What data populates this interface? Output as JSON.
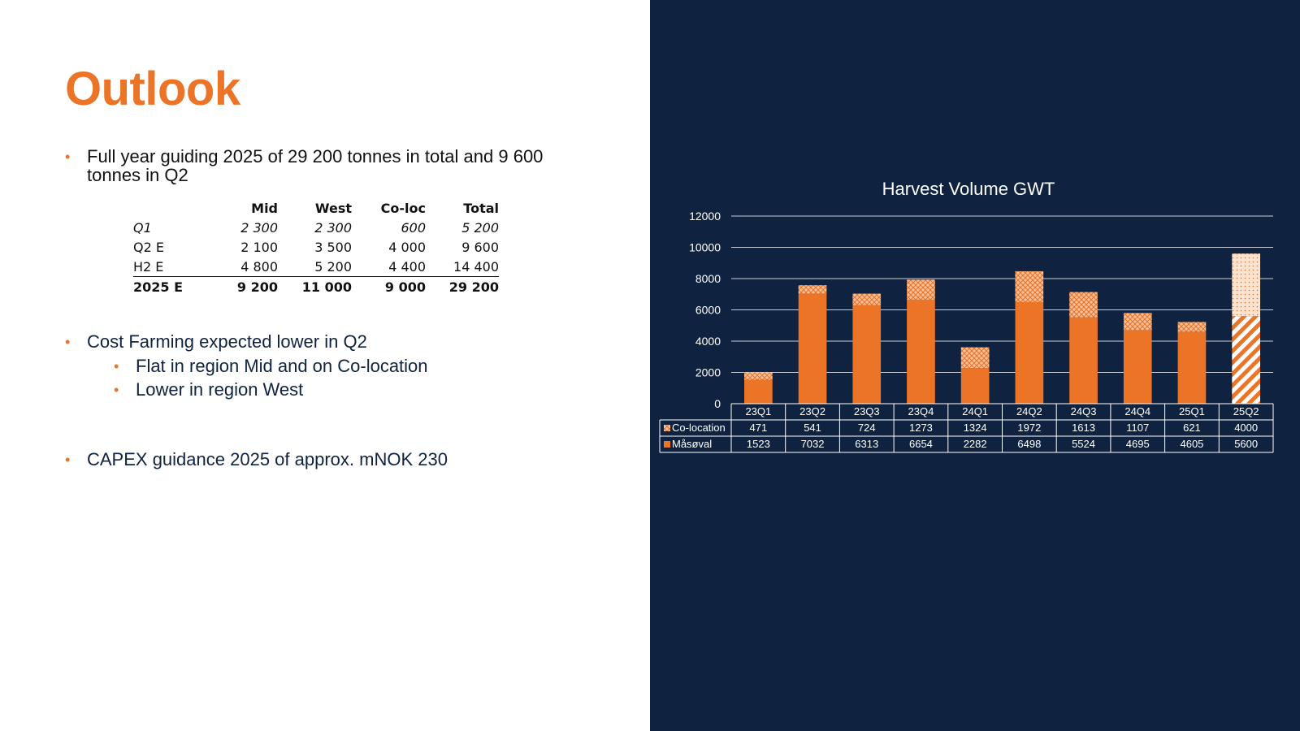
{
  "slide": {
    "title": "Outlook",
    "bullet1": "Full year guiding 2025 of 29 200 tonnes in total and 9 600",
    "bullet1_cont": "tonnes in Q2",
    "bullet2": "Cost Farming expected lower in Q2",
    "sub1": "Flat in region Mid and on Co-location",
    "sub2": "Lower in region West",
    "bullet3": "CAPEX guidance 2025 of approx. mNOK 230",
    "bullet_glyph": "•"
  },
  "guidance_table": {
    "headers": [
      "",
      "Mid",
      "West",
      "Co-loc",
      "Total"
    ],
    "rows": [
      {
        "label": "Q1",
        "mid": "2 300",
        "west": "2 300",
        "coloc": "600",
        "total": "5 200"
      },
      {
        "label": "Q2 E",
        "mid": "2 100",
        "west": "3 500",
        "coloc": "4 000",
        "total": "9 600"
      },
      {
        "label": "H2 E",
        "mid": "4 800",
        "west": "5 200",
        "coloc": "4 400",
        "total": "14 400"
      },
      {
        "label": "2025 E",
        "mid": "9 200",
        "west": "11 000",
        "coloc": "9 000",
        "total": "29 200"
      }
    ]
  },
  "colors": {
    "accent": "#ec7426",
    "navy": "#0f2341",
    "coloc_fill": "#f2a36b"
  },
  "chart_data": {
    "type": "bar",
    "stacked": true,
    "title": "Harvest Volume GWT",
    "categories": [
      "23Q1",
      "23Q2",
      "23Q3",
      "23Q4",
      "24Q1",
      "24Q2",
      "24Q3",
      "24Q4",
      "25Q1",
      "25Q2"
    ],
    "series": [
      {
        "name": "Måsøval",
        "values": [
          1523,
          7032,
          6313,
          6654,
          2282,
          6498,
          5524,
          4695,
          4605,
          5600
        ],
        "pattern": "solid"
      },
      {
        "name": "Co-location",
        "values": [
          471,
          541,
          724,
          1273,
          1324,
          1972,
          1613,
          1107,
          621,
          4000
        ],
        "pattern": "crosshatch"
      }
    ],
    "estimate_category": "25Q2",
    "ylim": [
      0,
      12000
    ],
    "yticks": [
      0,
      2000,
      4000,
      6000,
      8000,
      10000,
      12000
    ],
    "grid": true,
    "data_table": true
  }
}
